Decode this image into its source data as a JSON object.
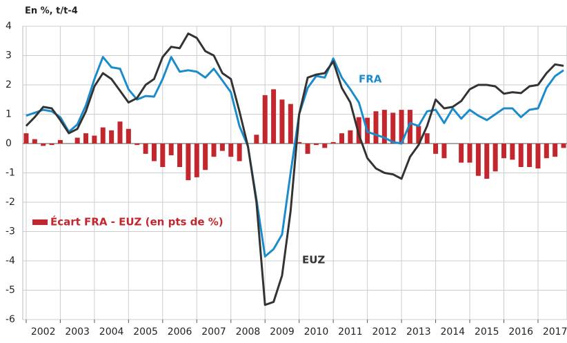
{
  "chart_data": {
    "type": "combo",
    "ylabel": "En %, t/t-4",
    "x": [
      2002,
      2002.25,
      2002.5,
      2002.75,
      2003,
      2003.25,
      2003.5,
      2003.75,
      2004,
      2004.25,
      2004.5,
      2004.75,
      2005,
      2005.25,
      2005.5,
      2005.75,
      2006,
      2006.25,
      2006.5,
      2006.75,
      2007,
      2007.25,
      2007.5,
      2007.75,
      2008,
      2008.25,
      2008.5,
      2008.75,
      2009,
      2009.25,
      2009.5,
      2009.75,
      2010,
      2010.25,
      2010.5,
      2010.75,
      2011,
      2011.25,
      2011.5,
      2011.75,
      2012,
      2012.25,
      2012.5,
      2012.75,
      2013,
      2013.25,
      2013.5,
      2013.75,
      2014,
      2014.25,
      2014.5,
      2014.75,
      2015,
      2015.25,
      2015.5,
      2015.75,
      2016,
      2016.25,
      2016.5,
      2016.75,
      2017,
      2017.25,
      2017.5,
      2017.75
    ],
    "series": [
      {
        "name": "Écart FRA - EUZ (en pts de %)",
        "type": "bar",
        "color": "#c1272d",
        "values": [
          0.35,
          0.15,
          -0.08,
          -0.05,
          0.12,
          0.0,
          0.2,
          0.35,
          0.27,
          0.55,
          0.45,
          0.75,
          0.5,
          -0.05,
          -0.35,
          -0.6,
          -0.8,
          -0.4,
          -0.8,
          -1.25,
          -1.15,
          -0.9,
          -0.45,
          -0.25,
          -0.45,
          -0.6,
          0.0,
          0.3,
          1.65,
          1.85,
          1.5,
          1.35,
          0.05,
          -0.35,
          -0.05,
          -0.15,
          0.05,
          0.35,
          0.45,
          0.9,
          0.88,
          1.1,
          1.15,
          1.05,
          1.15,
          1.15,
          0.6,
          0.35,
          -0.35,
          -0.5,
          0.0,
          -0.65,
          -0.65,
          -1.1,
          -1.2,
          -0.95,
          -0.5,
          -0.55,
          -0.8,
          -0.8,
          -0.85,
          -0.5,
          -0.45,
          -0.15
        ]
      },
      {
        "name": "FRA",
        "type": "line",
        "color": "#1a8ccc",
        "values": [
          0.95,
          1.05,
          1.15,
          1.1,
          0.9,
          0.4,
          0.65,
          1.3,
          2.2,
          2.95,
          2.6,
          2.55,
          1.85,
          1.5,
          1.62,
          1.6,
          2.2,
          2.95,
          2.45,
          2.5,
          2.45,
          2.25,
          2.55,
          2.15,
          1.75,
          0.6,
          -0.1,
          -1.9,
          -3.85,
          -3.6,
          -3.1,
          -1.0,
          1.0,
          1.9,
          2.3,
          2.25,
          2.9,
          2.25,
          1.85,
          1.4,
          0.4,
          0.3,
          0.2,
          0.05,
          0.0,
          0.7,
          0.6,
          1.1,
          1.15,
          0.7,
          1.2,
          0.85,
          1.15,
          0.95,
          0.8,
          1.0,
          1.2,
          1.2,
          0.9,
          1.15,
          1.2,
          1.9,
          2.3,
          2.5
        ]
      },
      {
        "name": "EUZ",
        "type": "line",
        "color": "#333333",
        "values": [
          0.6,
          0.9,
          1.25,
          1.2,
          0.8,
          0.35,
          0.5,
          1.1,
          1.95,
          2.4,
          2.2,
          1.8,
          1.4,
          1.55,
          2.0,
          2.2,
          2.95,
          3.3,
          3.25,
          3.75,
          3.6,
          3.15,
          3.0,
          2.4,
          2.2,
          1.1,
          -0.1,
          -2.0,
          -5.5,
          -5.4,
          -4.5,
          -2.3,
          1.0,
          2.25,
          2.35,
          2.4,
          2.8,
          1.9,
          1.4,
          0.3,
          -0.5,
          -0.85,
          -1.0,
          -1.05,
          -1.2,
          -0.45,
          -0.05,
          0.6,
          1.5,
          1.2,
          1.25,
          1.45,
          1.85,
          2.0,
          2.0,
          1.95,
          1.7,
          1.75,
          1.72,
          1.95,
          2.0,
          2.4,
          2.7,
          2.65
        ]
      }
    ],
    "xlim": [
      2001.9,
      2017.85
    ],
    "xticks": [
      2002,
      2003,
      2004,
      2005,
      2006,
      2007,
      2008,
      2009,
      2010,
      2011,
      2012,
      2013,
      2014,
      2015,
      2016,
      2017
    ],
    "ylim": [
      -6,
      4
    ],
    "yticks": [
      -6,
      -5,
      -4,
      -3,
      -2,
      -1,
      0,
      1,
      2,
      3,
      4
    ],
    "grid": true
  }
}
